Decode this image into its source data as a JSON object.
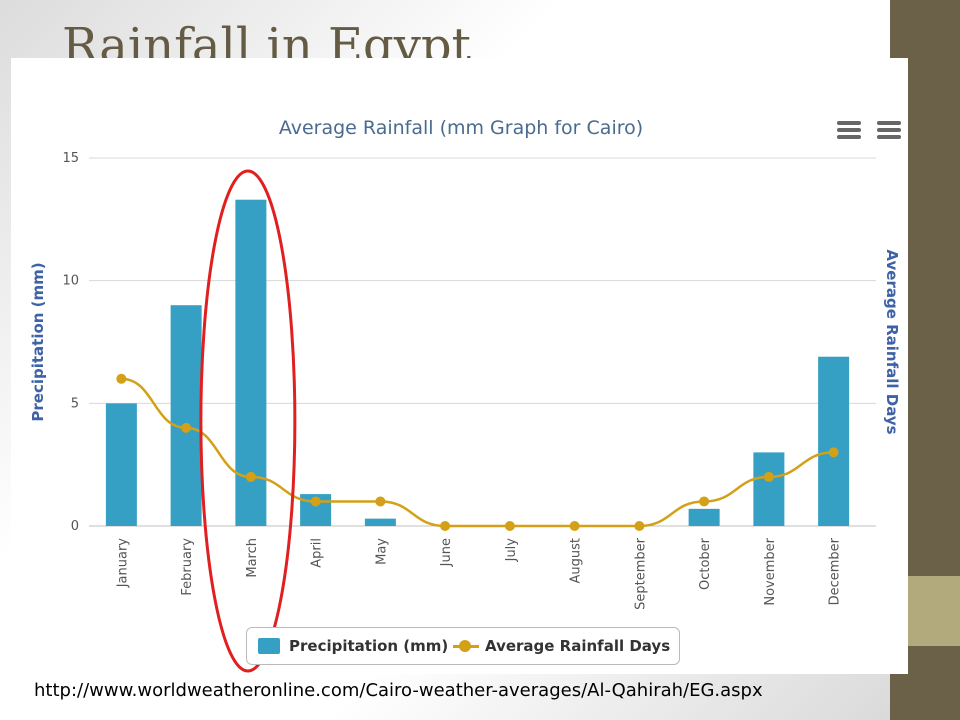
{
  "slide": {
    "title": "Rainfall in Egypt",
    "source": "http://www.worldweatheronline.com/Cairo-weather-averages/Al-Qahirah/EG.aspx"
  },
  "colors": {
    "bars": "#35a0c4",
    "line": "#d4a017",
    "highlight": "#e02020",
    "axis_title": "#3d62a5",
    "chart_title": "#4a6a8f",
    "side_band": "#6b6148",
    "side_tab": "#b2a97c"
  },
  "icons": [
    "menu-icon",
    "menu-icon"
  ],
  "chart_data": {
    "type": "bar",
    "title": "Average Rainfall (mm Graph for Cairo)",
    "categories": [
      "January",
      "February",
      "March",
      "April",
      "May",
      "June",
      "July",
      "August",
      "September",
      "October",
      "November",
      "December"
    ],
    "ylabel": "Precipitation (mm)",
    "y2label": "Average Rainfall Days",
    "ylim": [
      0,
      15
    ],
    "yticks": [
      0,
      5,
      10,
      15
    ],
    "grid": true,
    "legend_position": "bottom-center",
    "highlighted_category": "March",
    "series": [
      {
        "name": "Precipitation (mm)",
        "type": "bar",
        "values": [
          5,
          9,
          13.3,
          1.3,
          0.3,
          0,
          0,
          0,
          0,
          0.7,
          3,
          6.9
        ]
      },
      {
        "name": "Average Rainfall Days",
        "type": "line",
        "values": [
          6,
          4,
          2,
          1,
          1,
          0,
          0,
          0,
          0,
          1,
          2,
          3
        ]
      }
    ]
  }
}
